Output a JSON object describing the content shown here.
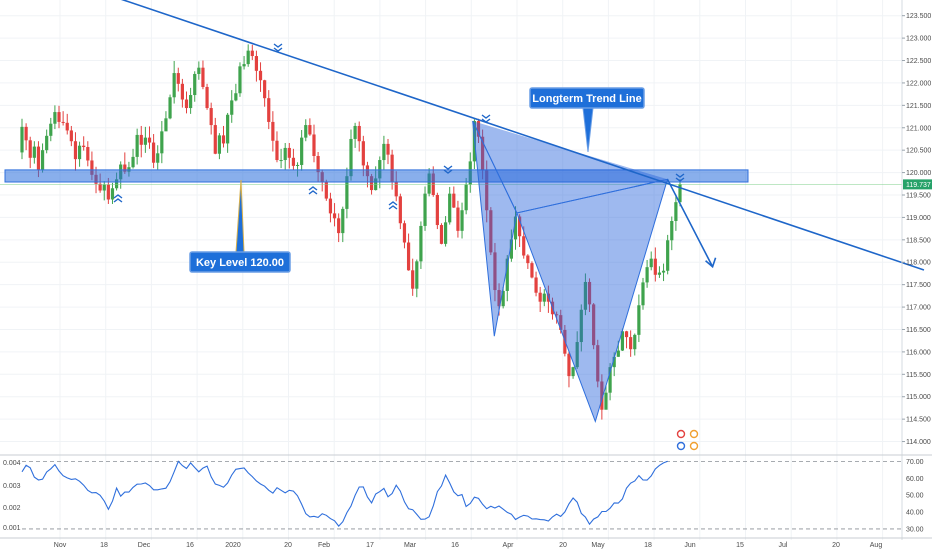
{
  "chart_data": {
    "type": "candlestick",
    "price_axis": {
      "ticks": [
        "123.500",
        "123.000",
        "122.500",
        "122.000",
        "121.500",
        "121.000",
        "120.500",
        "120.000",
        "119.500",
        "119.000",
        "118.500",
        "118.000",
        "117.500",
        "117.000",
        "116.500",
        "116.000",
        "115.500",
        "115.000",
        "114.500",
        "114.000"
      ],
      "ylim": [
        113.7,
        123.85
      ],
      "current_price": 119.737,
      "current_price_label": "119.737"
    },
    "time_axis": {
      "labels": [
        "Nov",
        "18",
        "Dec",
        "16",
        "2020",
        "20",
        "Feb",
        "17",
        "Mar",
        "16",
        "Apr",
        "20",
        "May",
        "18",
        "Jun",
        "15",
        "Jul",
        "20",
        "Aug"
      ]
    },
    "annotations": {
      "key_level_label": "Key Level 120.00",
      "trend_line_label": "Longterm Trend Line",
      "key_level_value": 120.0
    },
    "harmonic_pattern": [
      {
        "t": 0.524,
        "p": 121.15
      },
      {
        "t": 0.548,
        "p": 116.35
      },
      {
        "t": 0.573,
        "p": 119.1
      },
      {
        "t": 0.66,
        "p": 114.45
      },
      {
        "t": 0.74,
        "p": 119.85
      }
    ],
    "projection_arrow": {
      "from": {
        "t": 0.74,
        "p": 119.85
      },
      "to": {
        "t": 0.79,
        "p": 117.9
      }
    },
    "trend_line": {
      "from": {
        "t": 0.1,
        "p": 124.1
      },
      "to": {
        "t": 0.98,
        "p": 118.05
      }
    },
    "indicator": {
      "right_ticks": [
        "70.00",
        "60.00",
        "50.00",
        "40.00",
        "30.00"
      ],
      "left_ticks": [
        "0.004",
        "0.003",
        "0.002",
        "0.001"
      ],
      "upper_band": 70,
      "lower_band": 30,
      "range": [
        27,
        72
      ]
    },
    "candles": [
      [
        120.45,
        121.02,
        121.2,
        120.3
      ],
      [
        121.02,
        120.72,
        121.1,
        120.5
      ],
      [
        120.72,
        120.33,
        120.8,
        120.1
      ],
      [
        120.33,
        120.58,
        120.7,
        120.2
      ],
      [
        120.58,
        120.07,
        120.7,
        119.9
      ],
      [
        120.07,
        120.5,
        120.65,
        120.0
      ],
      [
        120.5,
        120.82,
        120.96,
        120.43
      ],
      [
        120.82,
        121.09,
        121.22,
        120.7
      ],
      [
        121.09,
        121.35,
        121.5,
        120.97
      ],
      [
        121.35,
        121.13,
        121.49,
        120.99
      ],
      [
        121.13,
        121.11,
        121.37,
        121.05
      ],
      [
        121.11,
        120.94,
        121.31,
        120.85
      ],
      [
        120.94,
        120.7,
        121.04,
        120.59
      ],
      [
        120.7,
        120.3,
        120.9,
        120.04
      ],
      [
        120.3,
        120.6,
        120.69,
        120.13
      ],
      [
        120.6,
        120.57,
        120.81,
        120.49
      ],
      [
        120.57,
        120.27,
        120.7,
        120.14
      ],
      [
        120.27,
        119.95,
        120.47,
        119.83
      ],
      [
        119.95,
        119.75,
        120.13,
        119.54
      ],
      [
        119.75,
        119.6,
        119.98,
        119.55
      ],
      [
        119.6,
        119.73,
        119.81,
        119.38
      ],
      [
        119.73,
        119.4,
        119.88,
        119.3
      ],
      [
        119.4,
        119.65,
        119.77,
        119.3
      ],
      [
        119.65,
        119.85,
        120.0,
        119.6
      ],
      [
        119.85,
        120.18,
        120.25,
        119.64
      ],
      [
        120.18,
        120.02,
        120.45,
        119.97
      ],
      [
        120.02,
        120.12,
        120.24,
        119.91
      ],
      [
        120.12,
        120.35,
        120.53,
        120.09
      ],
      [
        120.35,
        120.84,
        120.98,
        120.18
      ],
      [
        120.84,
        120.62,
        121.04,
        120.34
      ],
      [
        120.62,
        120.78,
        121.02,
        120.44
      ],
      [
        120.78,
        120.67,
        121.03,
        120.53
      ],
      [
        120.67,
        120.22,
        120.86,
        120.1
      ],
      [
        120.22,
        120.43,
        120.61,
        120.07
      ],
      [
        120.43,
        120.92,
        121.15,
        120.21
      ],
      [
        120.92,
        121.21,
        121.37,
        121.02
      ],
      [
        121.21,
        121.68,
        121.74,
        121.19
      ],
      [
        121.68,
        122.22,
        122.49,
        121.54
      ],
      [
        122.22,
        121.98,
        122.34,
        121.81
      ],
      [
        121.98,
        121.63,
        122.09,
        121.45
      ],
      [
        121.63,
        121.44,
        121.81,
        121.32
      ],
      [
        121.44,
        121.73,
        121.89,
        121.31
      ],
      [
        121.73,
        122.2,
        122.26,
        121.58
      ],
      [
        122.2,
        122.34,
        122.48,
        122.07
      ],
      [
        122.34,
        121.91,
        122.5,
        121.86
      ],
      [
        121.91,
        121.44,
        121.98,
        121.4
      ],
      [
        121.44,
        121.06,
        121.56,
        120.85
      ],
      [
        121.06,
        120.42,
        121.22,
        120.41
      ],
      [
        120.42,
        120.83,
        120.88,
        120.3
      ],
      [
        120.83,
        120.65,
        121.04,
        120.56
      ],
      [
        120.65,
        121.29,
        121.33,
        120.44
      ],
      [
        121.29,
        121.61,
        121.84,
        121.11
      ],
      [
        121.61,
        121.77,
        121.98,
        121.59
      ],
      [
        121.77,
        122.37,
        122.46,
        121.69
      ],
      [
        122.37,
        122.42,
        122.6,
        122.3
      ],
      [
        122.42,
        122.72,
        122.86,
        122.36
      ],
      [
        122.72,
        122.6,
        122.85,
        122.51
      ],
      [
        122.6,
        122.27,
        122.72,
        122.03
      ],
      [
        122.27,
        122.06,
        122.46,
        121.8
      ],
      [
        122.06,
        121.66,
        122.07,
        121.47
      ],
      [
        121.66,
        121.13,
        121.84,
        120.97
      ],
      [
        121.13,
        120.71,
        121.37,
        120.47
      ],
      [
        120.71,
        120.28,
        120.92,
        120.23
      ],
      [
        120.28,
        120.28,
        120.53,
        120.1
      ],
      [
        120.28,
        120.55,
        120.66,
        120.07
      ],
      [
        120.55,
        120.33,
        120.66,
        120.09
      ],
      [
        120.33,
        120.15,
        120.53,
        120.06
      ],
      [
        120.15,
        120.17,
        120.23,
        119.91
      ],
      [
        120.17,
        120.78,
        120.95,
        120.04
      ],
      [
        120.78,
        121.06,
        121.19,
        120.7
      ],
      [
        121.06,
        120.85,
        121.21,
        120.82
      ],
      [
        120.85,
        120.37,
        121.07,
        120.23
      ],
      [
        120.37,
        120.01,
        120.46,
        119.8
      ],
      [
        120.01,
        119.78,
        120.07,
        119.58
      ],
      [
        119.78,
        119.42,
        119.84,
        119.37
      ],
      [
        119.42,
        119.09,
        119.55,
        118.89
      ],
      [
        119.09,
        118.98,
        119.32,
        118.8
      ],
      [
        118.98,
        118.65,
        119.09,
        118.45
      ],
      [
        118.65,
        119.19,
        119.24,
        118.45
      ],
      [
        119.19,
        119.92,
        120.11,
        118.98
      ],
      [
        119.92,
        120.75,
        120.96,
        119.82
      ],
      [
        120.75,
        121.04,
        121.11,
        120.55
      ],
      [
        121.04,
        120.7,
        121.14,
        120.47
      ],
      [
        120.7,
        120.16,
        120.82,
        119.92
      ],
      [
        120.16,
        119.92,
        120.24,
        119.67
      ],
      [
        119.92,
        119.61,
        119.97,
        119.51
      ],
      [
        119.61,
        119.87,
        120.14,
        119.6
      ],
      [
        119.87,
        120.28,
        120.36,
        119.65
      ],
      [
        120.28,
        120.64,
        120.82,
        120.07
      ],
      [
        120.64,
        120.4,
        120.75,
        120.19
      ],
      [
        120.4,
        119.79,
        120.51,
        119.62
      ],
      [
        119.79,
        119.47,
        120.03,
        119.36
      ],
      [
        119.47,
        118.87,
        119.53,
        118.74
      ],
      [
        118.87,
        118.44,
        118.93,
        118.31
      ],
      [
        118.44,
        117.82,
        118.64,
        117.81
      ],
      [
        117.82,
        117.41,
        118.08,
        117.25
      ],
      [
        117.41,
        118.02,
        118.06,
        117.22
      ],
      [
        118.02,
        118.81,
        118.91,
        117.85
      ],
      [
        118.81,
        119.53,
        119.69,
        118.7
      ],
      [
        119.53,
        119.98,
        120.1,
        119.47
      ],
      [
        119.98,
        119.5,
        120.14,
        119.46
      ],
      [
        119.5,
        118.83,
        119.55,
        118.74
      ],
      [
        118.83,
        118.41,
        118.87,
        118.4
      ],
      [
        118.41,
        118.89,
        119.03,
        118.35
      ],
      [
        118.89,
        119.53,
        119.68,
        118.84
      ],
      [
        119.53,
        119.22,
        119.69,
        119.21
      ],
      [
        119.22,
        118.7,
        119.37,
        118.55
      ],
      [
        118.7,
        119.16,
        119.33,
        118.53
      ],
      [
        119.16,
        119.73,
        119.88,
        119.07
      ],
      [
        119.73,
        120.25,
        120.45,
        119.55
      ],
      [
        120.25,
        121.15,
        121.19,
        120.08
      ],
      [
        121.15,
        120.8,
        121.2,
        120.66
      ],
      [
        120.8,
        120.05,
        120.96,
        119.85
      ],
      [
        120.05,
        119.16,
        120.27,
        118.89
      ],
      [
        119.16,
        118.22,
        119.23,
        118.16
      ],
      [
        118.22,
        117.38,
        118.43,
        117.13
      ],
      [
        117.38,
        117.02,
        117.53,
        116.81
      ],
      [
        117.02,
        117.36,
        117.45,
        116.97
      ],
      [
        117.36,
        118.08,
        118.16,
        117.13
      ],
      [
        118.08,
        118.51,
        118.73,
        118.01
      ],
      [
        118.51,
        119.02,
        119.25,
        118.28
      ],
      [
        119.02,
        118.58,
        119.07,
        118.34
      ],
      [
        118.58,
        118.15,
        118.8,
        118.08
      ],
      [
        118.15,
        117.98,
        118.18,
        117.85
      ],
      [
        117.98,
        117.66,
        118.02,
        117.64
      ],
      [
        117.66,
        117.32,
        117.79,
        117.24
      ],
      [
        117.32,
        117.12,
        117.45,
        116.89
      ],
      [
        117.12,
        117.3,
        117.4,
        117.02
      ],
      [
        117.3,
        117.12,
        117.48,
        116.87
      ],
      [
        117.12,
        116.84,
        117.21,
        116.72
      ],
      [
        116.84,
        116.82,
        116.9,
        116.63
      ],
      [
        116.82,
        116.49,
        116.94,
        116.41
      ],
      [
        116.49,
        115.96,
        116.6,
        115.9
      ],
      [
        115.96,
        115.46,
        116.02,
        115.21
      ],
      [
        115.46,
        115.66,
        115.67,
        115.4
      ],
      [
        115.66,
        116.22,
        116.46,
        115.62
      ],
      [
        116.22,
        116.94,
        117.06,
        116.01
      ],
      [
        116.94,
        117.56,
        117.75,
        116.82
      ],
      [
        117.56,
        117.06,
        117.64,
        116.89
      ],
      [
        117.06,
        116.15,
        117.09,
        116.06
      ],
      [
        116.15,
        115.34,
        116.27,
        115.21
      ],
      [
        115.34,
        114.71,
        115.5,
        114.49
      ],
      [
        114.71,
        115.09,
        115.26,
        114.91
      ],
      [
        115.09,
        115.66,
        115.75,
        114.92
      ],
      [
        115.66,
        115.89,
        115.99,
        115.46
      ],
      [
        115.89,
        116.03,
        116.25,
        115.89
      ],
      [
        116.03,
        116.46,
        116.52,
        116.02
      ],
      [
        116.46,
        116.33,
        116.47,
        116.08
      ],
      [
        116.33,
        116.06,
        116.48,
        115.89
      ],
      [
        116.06,
        116.38,
        116.41,
        115.92
      ],
      [
        116.38,
        117.04,
        117.28,
        116.22
      ],
      [
        117.04,
        117.55,
        117.65,
        116.94
      ],
      [
        117.55,
        117.89,
        118.05,
        117.43
      ],
      [
        117.89,
        118.08,
        118.24,
        117.82
      ],
      [
        118.08,
        117.72,
        118.33,
        117.57
      ],
      [
        117.72,
        117.77,
        117.91,
        117.65
      ],
      [
        117.77,
        117.81,
        117.97,
        117.58
      ],
      [
        117.81,
        118.49,
        118.61,
        117.73
      ],
      [
        118.49,
        118.92,
        119.02,
        118.27
      ],
      [
        118.92,
        119.34,
        119.51,
        118.7
      ],
      [
        119.34,
        119.74,
        119.85,
        119.25
      ]
    ],
    "rsi": [
      63.8,
      67.7,
      66.2,
      60.7,
      59.0,
      59.5,
      63.7,
      65.6,
      68.1,
      64.3,
      61.5,
      60.2,
      59.3,
      59.7,
      58.2,
      55.9,
      52.9,
      51.4,
      51.5,
      49.9,
      46.5,
      41.6,
      46.5,
      54.2,
      49.4,
      51.8,
      51.8,
      54.6,
      56.5,
      56.6,
      57.2,
      55.7,
      53.2,
      53.2,
      53.7,
      54.1,
      57.9,
      63.9,
      70.0,
      67.5,
      65.8,
      69.1,
      66.4,
      63.8,
      66.0,
      67.2,
      60.8,
      56.6,
      55.8,
      54.7,
      57.2,
      61.9,
      65.3,
      65.7,
      66.1,
      63.2,
      61.0,
      58.4,
      56.6,
      55.3,
      52.9,
      51.2,
      54.4,
      52.9,
      51.4,
      52.9,
      52.4,
      49.6,
      44.7,
      39.0,
      37.1,
      37.5,
      36.8,
      39.0,
      38.1,
      36.1,
      34.8,
      31.7,
      34.3,
      39.7,
      43.6,
      49.9,
      54.8,
      54.9,
      48.9,
      45.4,
      50.7,
      52.1,
      54.0,
      49.0,
      51.0,
      55.9,
      52.4,
      46.0,
      41.9,
      41.4,
      38.6,
      35.7,
      35.8,
      37.2,
      43.7,
      52.1,
      55.5,
      61.9,
      57.2,
      51.9,
      49.6,
      50.3,
      43.3,
      45.1,
      48.8,
      48.1,
      44.6,
      42.0,
      43.4,
      42.4,
      43.6,
      41.7,
      39.8,
      38.7,
      35.6,
      37.0,
      38.1,
      37.6,
      35.9,
      36.0,
      35.5,
      35.4,
      34.7,
      37.1,
      38.7,
      37.4,
      40.1,
      44.9,
      48.3,
      45.8,
      39.2,
      37.0,
      32.8,
      35.8,
      37.1,
      40.3,
      40.3,
      42.3,
      45.4,
      45.3,
      47.8,
      54.2,
      57.1,
      58.4,
      61.6,
      59.0,
      58.9,
      61.4,
      65.5,
      67.6,
      69.1,
      70.1
    ]
  }
}
